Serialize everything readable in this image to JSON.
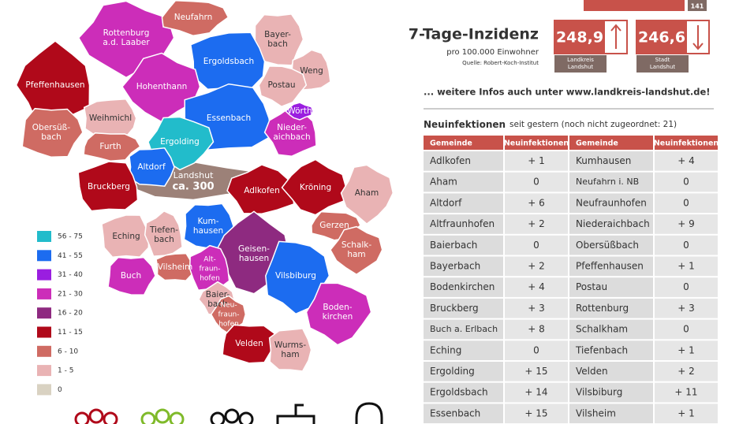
{
  "top_bar_label": "141",
  "incidence": {
    "title": "7-Tage-Inzidenz",
    "subtitle": "pro 100.000 Einwohner",
    "source": "Quelle: Robert-Koch-Institut",
    "boxes": [
      {
        "value": "248,9",
        "label": [
          "Landkreis",
          "Landshut"
        ]
      },
      {
        "value": "246,6",
        "label": [
          "Stadt",
          "Landshut"
        ]
      }
    ]
  },
  "more_info": "... weitere Infos auch unter www.landkreis-landshut.de!",
  "new_infections": {
    "title": "Neuinfektionen",
    "subtitle": "seit gestern (noch nicht zugeordnet: 21)",
    "table": {
      "header": [
        "Gemeinde",
        "Neuinfektionen",
        "Gemeinde",
        "Neuinfektionen"
      ],
      "rows": [
        [
          "Adlkofen",
          "+ 1",
          "Kumhausen",
          "+ 4"
        ],
        [
          "Aham",
          "0",
          "Neufahrn i. NB",
          "0"
        ],
        [
          "Altdorf",
          "+ 6",
          "Neufraunhofen",
          "0"
        ],
        [
          "Altfraunhofen",
          "+ 2",
          "Niederaichbach",
          "+ 9"
        ],
        [
          "Baierbach",
          "0",
          "Obersüßbach",
          "0"
        ],
        [
          "Bayerbach",
          "+ 2",
          "Pfeffenhausen",
          "+ 1"
        ],
        [
          "Bodenkirchen",
          "+ 4",
          "Postau",
          "0"
        ],
        [
          "Bruckberg",
          "+ 3",
          "Rottenburg",
          "+ 3"
        ],
        [
          "Buch a. Erlbach",
          "+ 8",
          "Schalkham",
          "0"
        ],
        [
          "Eching",
          "0",
          "Tiefenbach",
          "+ 1"
        ],
        [
          "Ergolding",
          "+ 15",
          "Velden",
          "+ 2"
        ],
        [
          "Ergoldsbach",
          "+ 14",
          "Vilsbiburg",
          "+ 11"
        ],
        [
          "Essenbach",
          "+ 15",
          "Vilsheim",
          "+ 1"
        ]
      ]
    }
  },
  "map": {
    "legend": [
      {
        "label": "56 - 75",
        "color": "#22bccb"
      },
      {
        "label": "41 - 55",
        "color": "#1c6cf0"
      },
      {
        "label": "31 - 40",
        "color": "#9a1ee0"
      },
      {
        "label": "21 - 30",
        "color": "#cc2db9"
      },
      {
        "label": "16 - 20",
        "color": "#8e2a80"
      },
      {
        "label": "11 - 15",
        "color": "#b0091a"
      },
      {
        "label": "6 - 10",
        "color": "#cf6b63"
      },
      {
        "label": "1 - 5",
        "color": "#e9b3b4"
      },
      {
        "label": "0",
        "color": "#d9d2c2"
      }
    ],
    "regions": [
      {
        "label": [
          "Landshut",
          "ca. 300"
        ],
        "color": "#9c8178"
      },
      {
        "label": [
          "Rottenburg",
          "a.d. Laaber"
        ],
        "color": "#cc2db9"
      },
      {
        "label": [
          "Neufahrn"
        ],
        "color": "#cf6b63"
      },
      {
        "label": [
          "Bayer-",
          "bach"
        ],
        "color": "#e9b3b4"
      },
      {
        "label": [
          "Ergoldsbach"
        ],
        "color": "#1c6cf0"
      },
      {
        "label": [
          "Weng"
        ],
        "color": "#e9b3b4"
      },
      {
        "label": [
          "Pfeffenhausen"
        ],
        "color": "#b0091a"
      },
      {
        "label": [
          "Hohenthann"
        ],
        "color": "#cc2db9"
      },
      {
        "label": [
          "Postau"
        ],
        "color": "#e9b3b4"
      },
      {
        "label": [
          "Obersüß-",
          "bach"
        ],
        "color": "#cf6b63"
      },
      {
        "label": [
          "Weihmichl"
        ],
        "color": "#e9b3b4"
      },
      {
        "label": [
          "Essenbach"
        ],
        "color": "#1c6cf0"
      },
      {
        "label": [
          "Nieder-",
          "aichbach"
        ],
        "color": "#cc2db9"
      },
      {
        "label": [
          "Wörth"
        ],
        "color": "#9a1ee0"
      },
      {
        "label": [
          "Ergolding"
        ],
        "color": "#22bccb"
      },
      {
        "label": [
          "Furth"
        ],
        "color": "#cf6b63"
      },
      {
        "label": [
          "Altdorf"
        ],
        "color": "#1c6cf0"
      },
      {
        "label": [
          "Bruckberg"
        ],
        "color": "#b0091a"
      },
      {
        "label": [
          "Adlkofen"
        ],
        "color": "#b0091a"
      },
      {
        "label": [
          "Kröning"
        ],
        "color": "#b0091a"
      },
      {
        "label": [
          "Aham"
        ],
        "color": "#e9b3b4"
      },
      {
        "label": [
          "Gerzen"
        ],
        "color": "#cf6b63"
      },
      {
        "label": [
          "Kum-",
          "hausen"
        ],
        "color": "#1c6cf0"
      },
      {
        "label": [
          "Eching"
        ],
        "color": "#e9b3b4"
      },
      {
        "label": [
          "Tiefen-",
          "bach"
        ],
        "color": "#e9b3b4"
      },
      {
        "label": [
          "Geisen-",
          "hausen"
        ],
        "color": "#8e2a80"
      },
      {
        "label": [
          "Schalk-",
          "ham"
        ],
        "color": "#cf6b63"
      },
      {
        "label": [
          "Vilsbiburg"
        ],
        "color": "#1c6cf0"
      },
      {
        "label": [
          "Buch"
        ],
        "color": "#cc2db9"
      },
      {
        "label": [
          "Vilsheim"
        ],
        "color": "#cf6b63"
      },
      {
        "label": [
          "Alt-",
          "fraun-",
          "hofen"
        ],
        "color": "#cc2db9"
      },
      {
        "label": [
          "Baier-",
          "bach"
        ],
        "color": "#e9b3b4"
      },
      {
        "label": [
          "Neu-",
          "fraun-",
          "hofen"
        ],
        "color": "#cf6b63"
      },
      {
        "label": [
          "Boden-",
          "kirchen"
        ],
        "color": "#cc2db9"
      },
      {
        "label": [
          "Velden"
        ],
        "color": "#b0091a"
      },
      {
        "label": [
          "Wurms-",
          "ham"
        ],
        "color": "#e9b3b4"
      }
    ]
  }
}
